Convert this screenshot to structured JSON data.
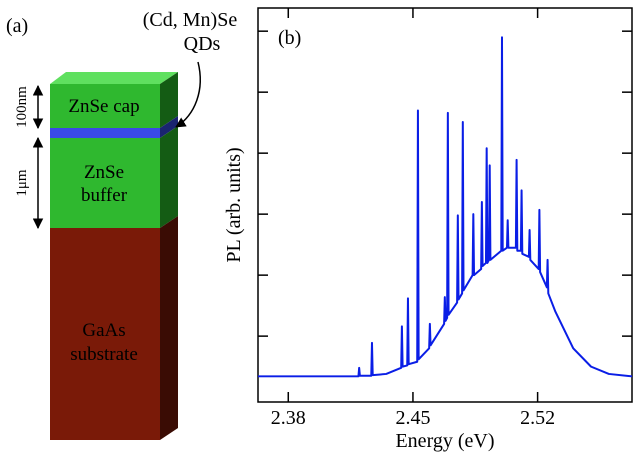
{
  "diagram": {
    "panel_label": "(a)",
    "qd_label_1": "(Cd, Mn)Se",
    "qd_label_2": "QDs",
    "cap_thickness": "100nm",
    "buffer_thickness": "1μm",
    "cap_label": "ZnSe cap",
    "buffer_label_1": "ZnSe",
    "buffer_label_2": "buffer",
    "substrate_label_1": "GaAs",
    "substrate_label_2": "substrate"
  },
  "chart_data": {
    "type": "line",
    "panel_label": "(b)",
    "x_label": "Energy (eV)",
    "y_label": "PL (arb. units)",
    "xlim": [
      2.363,
      2.573
    ],
    "xticks": [
      2.38,
      2.45,
      2.52
    ],
    "ylim": [
      -0.08,
      6.38
    ],
    "yticks": [
      1,
      2,
      3,
      4,
      5,
      6
    ],
    "series": [
      {
        "color": "#0a1ee6",
        "x": [
          2.363,
          2.41,
          2.4194,
          2.4198,
          2.4202,
          2.4266,
          2.427,
          2.4274,
          2.435,
          2.4434,
          2.4438,
          2.4442,
          2.4468,
          2.4472,
          2.4476,
          2.4524,
          2.4528,
          2.4532,
          2.4591,
          2.4595,
          2.4599,
          2.4675,
          2.4679,
          2.4683,
          2.4692,
          2.4696,
          2.47,
          2.4748,
          2.4752,
          2.4756,
          2.4776,
          2.478,
          2.4784,
          2.4835,
          2.4839,
          2.4843,
          2.4883,
          2.4887,
          2.4891,
          2.491,
          2.4914,
          2.4918,
          2.4927,
          2.4931,
          2.4935,
          2.4996,
          2.5,
          2.5004,
          2.5028,
          2.5032,
          2.5036,
          2.5078,
          2.5082,
          2.5086,
          2.5106,
          2.511,
          2.5114,
          2.5151,
          2.5155,
          2.5159,
          2.5206,
          2.521,
          2.5214,
          2.5252,
          2.5256,
          2.526,
          2.53,
          2.54,
          2.55,
          2.56,
          2.573
        ],
        "values": [
          0.34,
          0.34,
          0.34,
          0.48,
          0.35,
          0.35,
          0.89,
          0.36,
          0.38,
          0.48,
          1.16,
          0.5,
          0.52,
          1.62,
          0.54,
          0.58,
          4.7,
          0.62,
          0.8,
          1.2,
          0.85,
          1.2,
          1.64,
          1.25,
          1.3,
          4.66,
          1.35,
          1.55,
          2.98,
          1.6,
          1.7,
          4.51,
          1.75,
          2.0,
          3.0,
          2.0,
          2.1,
          3.2,
          2.15,
          2.2,
          4.08,
          2.2,
          2.25,
          3.8,
          2.25,
          2.4,
          5.9,
          2.4,
          2.45,
          2.9,
          2.45,
          2.45,
          3.89,
          2.4,
          2.4,
          3.39,
          2.35,
          2.3,
          2.74,
          2.25,
          2.1,
          3.07,
          2.05,
          1.8,
          2.25,
          1.7,
          1.4,
          0.8,
          0.5,
          0.38,
          0.34
        ]
      }
    ]
  }
}
